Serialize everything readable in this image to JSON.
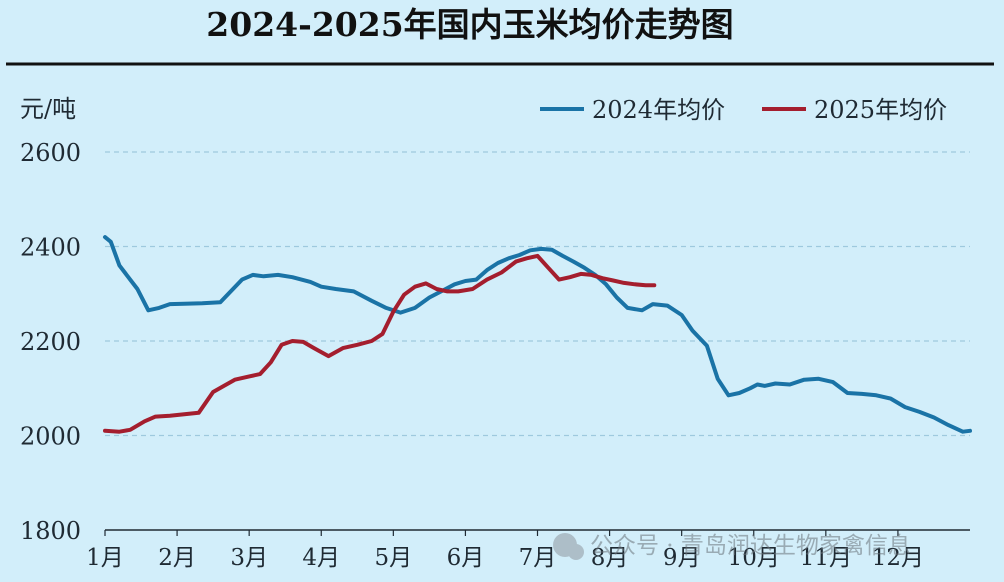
{
  "colors": {
    "background": "#d2eefa",
    "series_2024": "#1a73a6",
    "series_2025": "#a41e2e",
    "title_rule": "#111111",
    "grid": "#9ec9de",
    "text": "#1f2a33"
  },
  "watermark": "公众号 · 青岛润达生物家禽信息",
  "chart_data": {
    "type": "line",
    "title": "2024-2025年国内玉米均价走势图",
    "ylabel": "元/吨",
    "xlabel": "",
    "ylim": [
      1800,
      2600
    ],
    "yticks": [
      1800,
      2000,
      2200,
      2400,
      2600
    ],
    "grid": "horizontal dashed",
    "legend_position": "top-right",
    "x_domain": [
      1,
      13
    ],
    "x_tick_values": [
      1,
      2,
      3,
      4,
      5,
      6,
      7,
      8,
      9,
      10,
      11,
      12
    ],
    "categories": [
      "1月",
      "2月",
      "3月",
      "4月",
      "5月",
      "6月",
      "7月",
      "8月",
      "9月",
      "10月",
      "11月",
      "12月"
    ],
    "series": [
      {
        "name": "2024年均价",
        "color": "#1a73a6",
        "x": [
          1.0,
          1.08,
          1.2,
          1.3,
          1.45,
          1.6,
          1.75,
          1.9,
          2.1,
          2.35,
          2.6,
          2.9,
          3.05,
          3.2,
          3.4,
          3.6,
          3.85,
          4.0,
          4.2,
          4.45,
          4.7,
          4.9,
          5.1,
          5.3,
          5.5,
          5.7,
          5.85,
          6.0,
          6.15,
          6.3,
          6.45,
          6.6,
          6.75,
          6.9,
          7.05,
          7.2,
          7.35,
          7.5,
          7.65,
          7.8,
          7.95,
          8.1,
          8.25,
          8.45,
          8.6,
          8.8,
          9.0,
          9.15,
          9.35,
          9.5,
          9.65,
          9.8,
          9.95,
          10.05,
          10.15,
          10.3,
          10.5,
          10.7,
          10.9,
          11.1,
          11.3,
          11.5,
          11.7,
          11.9,
          12.1,
          12.3,
          12.5,
          12.7,
          12.9,
          13.0
        ],
        "values": [
          2420,
          2410,
          2360,
          2340,
          2310,
          2265,
          2270,
          2278,
          2279,
          2280,
          2282,
          2330,
          2340,
          2337,
          2340,
          2335,
          2325,
          2315,
          2310,
          2305,
          2285,
          2270,
          2260,
          2270,
          2292,
          2308,
          2320,
          2327,
          2330,
          2350,
          2365,
          2375,
          2382,
          2392,
          2395,
          2393,
          2380,
          2368,
          2355,
          2340,
          2320,
          2292,
          2270,
          2265,
          2278,
          2275,
          2255,
          2222,
          2190,
          2120,
          2085,
          2090,
          2100,
          2108,
          2105,
          2110,
          2108,
          2118,
          2120,
          2113,
          2090,
          2088,
          2085,
          2078,
          2060,
          2050,
          2038,
          2022,
          2008,
          2010
        ]
      },
      {
        "name": "2025年均价",
        "color": "#a41e2e",
        "x": [
          1.0,
          1.2,
          1.35,
          1.55,
          1.7,
          1.9,
          2.1,
          2.3,
          2.5,
          2.65,
          2.8,
          3.0,
          3.15,
          3.3,
          3.45,
          3.6,
          3.75,
          3.9,
          4.1,
          4.3,
          4.5,
          4.7,
          4.85,
          5.0,
          5.15,
          5.3,
          5.45,
          5.6,
          5.75,
          5.9,
          6.1,
          6.3,
          6.5,
          6.7,
          6.85,
          7.0,
          7.15,
          7.3,
          7.45,
          7.6,
          7.75,
          7.9,
          8.05,
          8.2,
          8.35,
          8.5,
          8.62
        ],
        "values": [
          2010,
          2008,
          2012,
          2030,
          2040,
          2042,
          2045,
          2048,
          2092,
          2105,
          2118,
          2125,
          2130,
          2155,
          2192,
          2200,
          2198,
          2185,
          2168,
          2185,
          2192,
          2200,
          2215,
          2262,
          2298,
          2315,
          2322,
          2310,
          2305,
          2305,
          2310,
          2330,
          2345,
          2368,
          2375,
          2380,
          2355,
          2330,
          2335,
          2342,
          2340,
          2333,
          2328,
          2323,
          2320,
          2318,
          2318
        ]
      }
    ]
  }
}
